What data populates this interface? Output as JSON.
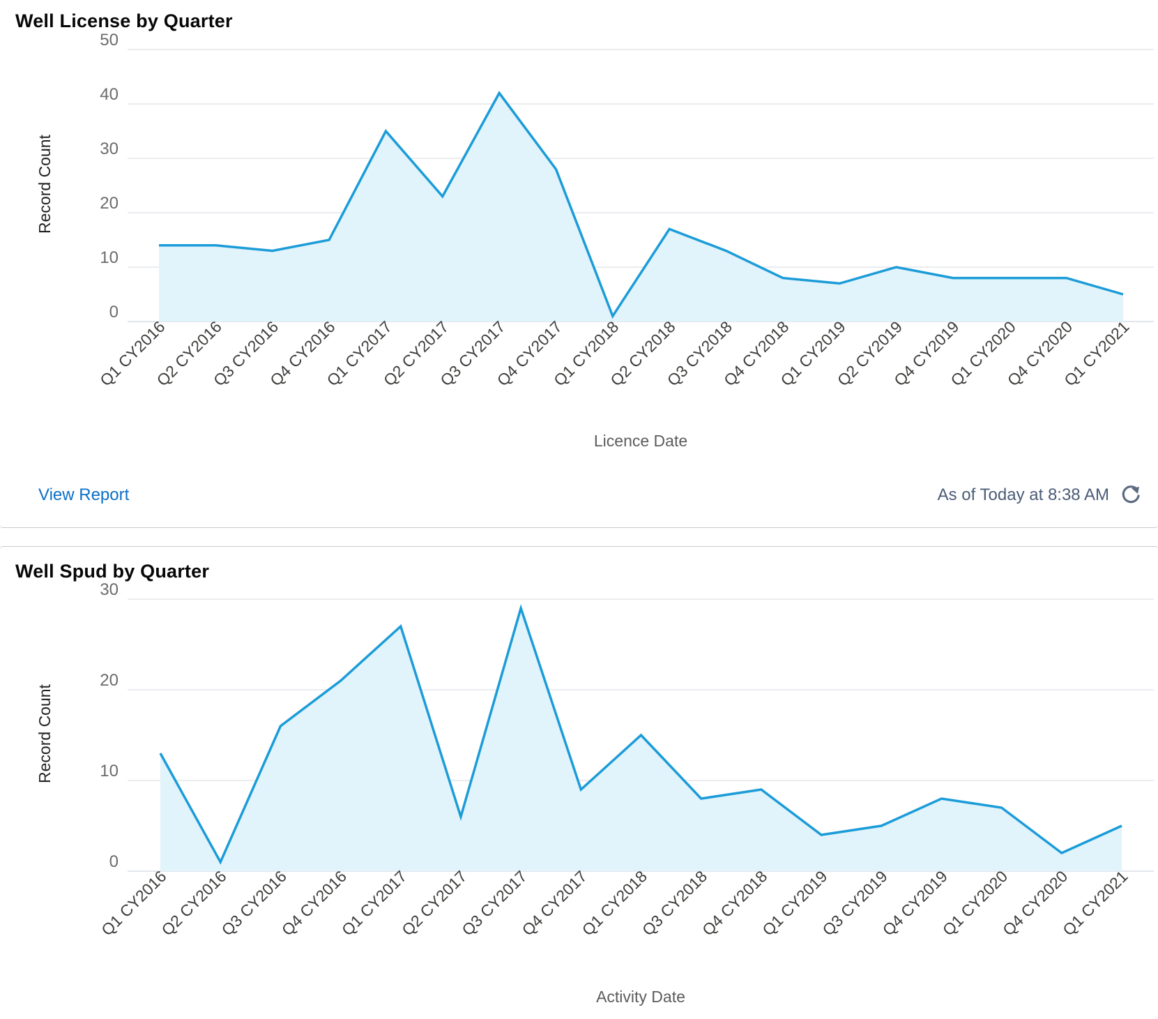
{
  "chart_data": [
    {
      "type": "area",
      "title": "Well License by Quarter",
      "xlabel": "Licence Date",
      "ylabel": "Record Count",
      "ylim": [
        0,
        50
      ],
      "yticks": [
        0,
        10,
        20,
        30,
        40,
        50
      ],
      "grid": true,
      "categories": [
        "Q1 CY2016",
        "Q2 CY2016",
        "Q3 CY2016",
        "Q4 CY2016",
        "Q1 CY2017",
        "Q2 CY2017",
        "Q3 CY2017",
        "Q4 CY2017",
        "Q1 CY2018",
        "Q2 CY2018",
        "Q3 CY2018",
        "Q4 CY2018",
        "Q1 CY2019",
        "Q2 CY2019",
        "Q4 CY2019",
        "Q1 CY2020",
        "Q4 CY2020",
        "Q1 CY2021"
      ],
      "values": [
        14,
        14,
        13,
        15,
        35,
        23,
        42,
        28,
        1,
        17,
        13,
        8,
        7,
        10,
        8,
        8,
        8,
        5
      ],
      "color": "#1b9cd8",
      "fill_color": "#e1f3fb"
    },
    {
      "type": "area",
      "title": "Well Spud by Quarter",
      "xlabel": "Activity Date",
      "ylabel": "Record Count",
      "ylim": [
        0,
        30
      ],
      "yticks": [
        0,
        10,
        20,
        30
      ],
      "grid": true,
      "categories": [
        "Q1 CY2016",
        "Q2 CY2016",
        "Q3 CY2016",
        "Q4 CY2016",
        "Q1 CY2017",
        "Q2 CY2017",
        "Q3 CY2017",
        "Q4 CY2017",
        "Q1 CY2018",
        "Q3 CY2018",
        "Q4 CY2018",
        "Q1 CY2019",
        "Q3 CY2019",
        "Q4 CY2019",
        "Q1 CY2020",
        "Q4 CY2020",
        "Q1 CY2021"
      ],
      "values": [
        13,
        1,
        16,
        21,
        27,
        6,
        29,
        9,
        15,
        8,
        9,
        4,
        5,
        8,
        7,
        2,
        5
      ],
      "color": "#1b9cd8",
      "fill_color": "#e1f3fb"
    }
  ],
  "cards": {
    "license": {
      "view_report": "View Report",
      "timestamp": "As of Today at 8:38 AM",
      "refresh_icon": "refresh-icon"
    }
  }
}
